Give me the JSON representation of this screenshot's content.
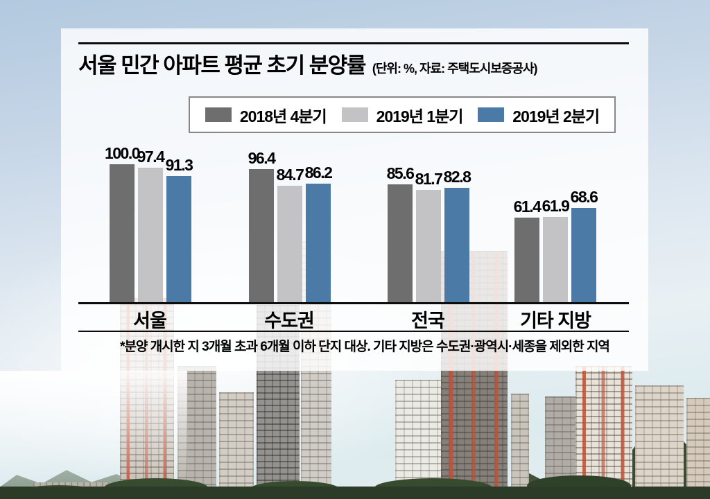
{
  "title": "서울 민간 아파트 평균 초기 분양률",
  "subtitle": "(단위: %, 자료: 주택도시보증공사)",
  "legend": [
    {
      "label": "2018년 4분기",
      "color": "#6e6e6e"
    },
    {
      "label": "2019년 1분기",
      "color": "#c3c3c5"
    },
    {
      "label": "2019년 2분기",
      "color": "#4b7aa7"
    }
  ],
  "footnote": "*분양 개시한 지 3개월 초과 6개월 이하 단지 대상. 기타 지방은 수도권·광역시·세종을 제외한 지역",
  "chart_data": {
    "type": "bar",
    "categories": [
      "서울",
      "수도권",
      "전국",
      "기타 지방"
    ],
    "series": [
      {
        "name": "2018년 4분기",
        "color": "#6e6e6e",
        "values": [
          100.0,
          96.4,
          85.6,
          61.4
        ]
      },
      {
        "name": "2019년 1분기",
        "color": "#c3c3c5",
        "values": [
          97.4,
          84.7,
          81.7,
          61.9
        ]
      },
      {
        "name": "2019년 2분기",
        "color": "#4b7aa7",
        "values": [
          91.3,
          86.2,
          82.8,
          68.6
        ]
      }
    ],
    "unit": "%",
    "ylim": [
      0,
      100
    ],
    "grid": false,
    "legend_position": "top",
    "value_labels": true,
    "value_label_format": "0.0"
  },
  "scene": {
    "background": "apartment-complex-photo",
    "panel_overlay_color": "#ffffff"
  }
}
